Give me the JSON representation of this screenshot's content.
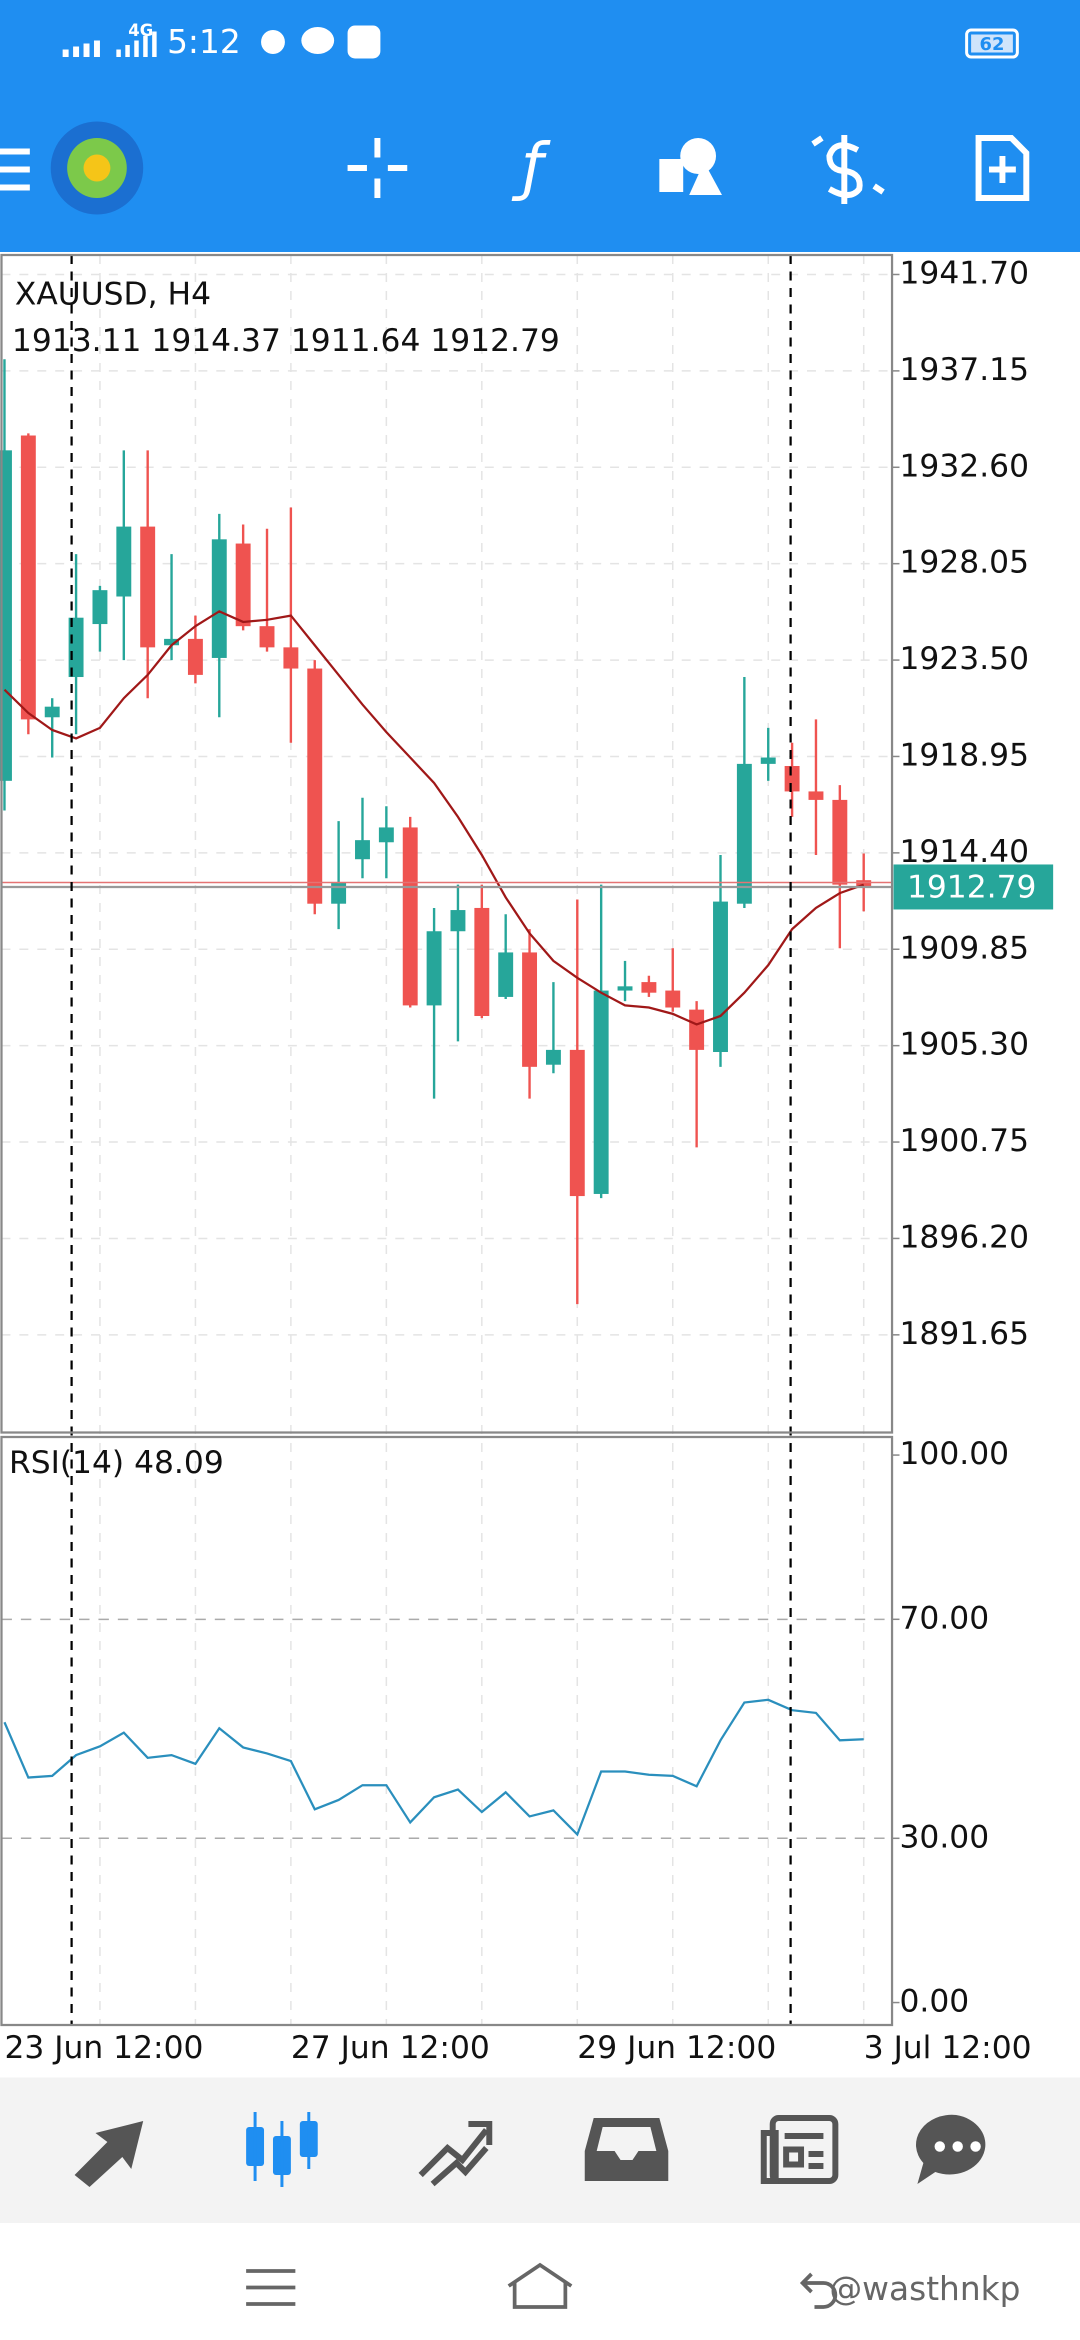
{
  "status_bar": {
    "time": "5:12",
    "network": "4G",
    "battery": "62"
  },
  "chart_data": [
    {
      "type": "candlestick",
      "title": "XAUUSD, H4",
      "categories": [
        "23 Jun 12:00",
        null,
        null,
        null,
        null,
        null,
        null,
        null,
        null,
        null,
        null,
        null,
        "27 Jun 12:00",
        null,
        null,
        null,
        null,
        null,
        null,
        null,
        null,
        null,
        null,
        null,
        "29 Jun 12:00",
        null,
        null,
        null,
        null,
        null,
        null,
        null,
        null,
        null,
        null,
        null,
        "3 Jul 12:00"
      ],
      "open": [
        1917.8,
        1934.1,
        1920.8,
        1922.7,
        1925.2,
        1926.5,
        1929.8,
        1924.2,
        1924.5,
        1923.6,
        1929.0,
        1925.1,
        1924.1,
        1923.1,
        1912.0,
        1914.1,
        1914.9,
        1915.6,
        1907.2,
        1910.7,
        1911.8,
        1907.6,
        1909.7,
        1904.4,
        1905.1,
        1898.3,
        1907.9,
        1908.3,
        1907.9,
        1907.0,
        1905.0,
        1912.0,
        1918.6,
        1918.5,
        1917.3,
        1916.9,
        1913.11
      ],
      "high": [
        1937.7,
        1934.2,
        1921.7,
        1928.5,
        1927.0,
        1933.4,
        1933.4,
        1928.5,
        1925.6,
        1930.4,
        1929.9,
        1929.7,
        1930.7,
        1923.5,
        1915.9,
        1917.0,
        1916.6,
        1916.1,
        1911.8,
        1912.9,
        1912.9,
        1911.5,
        1910.8,
        1908.3,
        1912.2,
        1912.9,
        1909.3,
        1908.6,
        1909.9,
        1907.4,
        1914.3,
        1922.7,
        1920.3,
        1919.6,
        1920.7,
        1917.6,
        1914.37
      ],
      "low": [
        1916.4,
        1920.0,
        1918.9,
        1920.0,
        1923.9,
        1923.5,
        1921.7,
        1923.5,
        1922.4,
        1920.8,
        1924.9,
        1923.9,
        1919.6,
        1911.5,
        1910.8,
        1913.2,
        1913.2,
        1907.1,
        1902.8,
        1905.5,
        1906.6,
        1907.5,
        1902.8,
        1904.0,
        1893.1,
        1898.1,
        1907.4,
        1907.6,
        1906.9,
        1900.5,
        1904.3,
        1911.8,
        1917.8,
        1916.1,
        1914.3,
        1909.9,
        1911.64
      ],
      "close": [
        1933.4,
        1920.7,
        1921.3,
        1925.5,
        1926.8,
        1929.8,
        1924.1,
        1924.5,
        1922.8,
        1929.2,
        1925.1,
        1924.1,
        1923.1,
        1912.0,
        1913.0,
        1915.0,
        1915.6,
        1907.2,
        1910.7,
        1911.7,
        1906.7,
        1909.7,
        1904.3,
        1905.1,
        1898.2,
        1907.9,
        1908.1,
        1907.8,
        1907.1,
        1905.1,
        1912.1,
        1918.6,
        1918.9,
        1917.3,
        1916.9,
        1912.9,
        1912.79
      ],
      "up_color": "#26a69a",
      "down_color": "#ef5350",
      "overlay": {
        "color": "#a01818",
        "values": [
          1922.1,
          1921.0,
          1920.2,
          1919.8,
          1920.3,
          1921.7,
          1922.8,
          1924.2,
          1925.1,
          1925.8,
          1925.3,
          1925.4,
          1925.6,
          1924.2,
          1922.8,
          1921.4,
          1920.1,
          1918.9,
          1917.7,
          1916.1,
          1914.3,
          1912.3,
          1910.6,
          1909.3,
          1908.5,
          1907.8,
          1907.2,
          1907.1,
          1906.8,
          1906.3,
          1906.7,
          1907.8,
          1909.1,
          1910.8,
          1911.8,
          1912.5,
          1912.9
        ]
      },
      "ylim": [
        1887.04,
        1942.62
      ],
      "yticks": [
        {
          "value": 1941.7,
          "label": "1941.70"
        },
        {
          "value": 1937.15,
          "label": "1937.15"
        },
        {
          "value": 1932.6,
          "label": "1932.60"
        },
        {
          "value": 1928.05,
          "label": "1928.05"
        },
        {
          "value": 1923.5,
          "label": "1923.50"
        },
        {
          "value": 1918.95,
          "label": "1918.95"
        },
        {
          "value": 1914.4,
          "label": "1914.40"
        },
        {
          "value": 1909.85,
          "label": "1909.85"
        },
        {
          "value": 1905.3,
          "label": "1905.30"
        },
        {
          "value": 1900.75,
          "label": "1900.75"
        },
        {
          "value": 1896.2,
          "label": "1896.20"
        },
        {
          "value": 1891.65,
          "label": "1891.65"
        }
      ],
      "grid": true
    },
    {
      "type": "line",
      "title": "RSI(14)",
      "values": [
        51.2,
        41.1,
        41.4,
        45.2,
        46.8,
        49.3,
        44.7,
        45.2,
        43.6,
        50.1,
        46.6,
        45.5,
        44.1,
        35.3,
        37.0,
        39.7,
        39.7,
        32.9,
        37.5,
        38.9,
        34.8,
        38.4,
        34.0,
        35.1,
        30.7,
        42.2,
        42.2,
        41.6,
        41.4,
        39.5,
        47.9,
        54.8,
        55.3,
        53.4,
        52.9,
        47.9,
        48.09
      ],
      "color": "#2a8fbd",
      "ylim": [
        -4.1,
        103.3
      ],
      "yticks": [
        {
          "value": 100,
          "label": "100.00"
        },
        {
          "value": 70,
          "label": "70.00"
        },
        {
          "value": 30,
          "label": "30.00"
        },
        {
          "value": 0,
          "label": "0.00"
        }
      ],
      "levels": [
        70,
        30
      ]
    }
  ],
  "watermark": "@wasthnkp"
}
